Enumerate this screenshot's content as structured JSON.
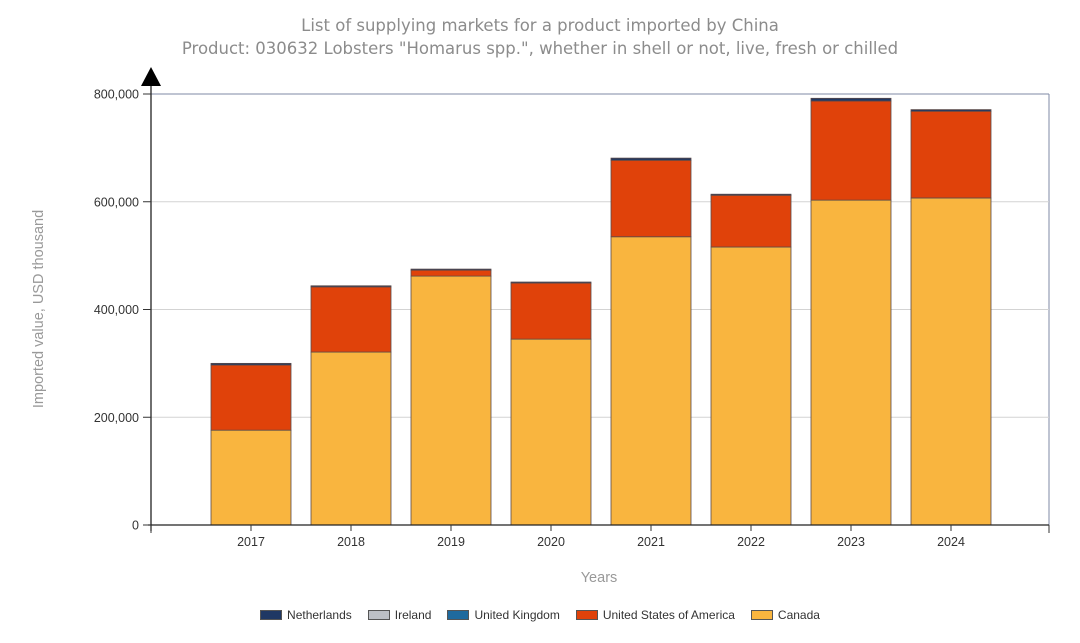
{
  "chart_data": {
    "type": "bar",
    "stacked": true,
    "title": "List of supplying markets for a product imported by China",
    "subtitle": "Product: 030632 Lobsters \"Homarus spp.\", whether in shell or not, live, fresh or chilled",
    "xlabel": "Years",
    "ylabel": "Imported value, USD thousand",
    "ylim": [
      0,
      800000
    ],
    "yticks": [
      0,
      200000,
      400000,
      600000,
      800000
    ],
    "ytick_labels": [
      "0",
      "200,000",
      "400,000",
      "600,000",
      "800,000"
    ],
    "grid": true,
    "legend_position": "bottom",
    "categories": [
      "2017",
      "2018",
      "2019",
      "2020",
      "2021",
      "2022",
      "2023",
      "2024"
    ],
    "series": [
      {
        "name": "Canada",
        "color": "#F9B53F",
        "values": [
          176000,
          321000,
          462000,
          345000,
          535000,
          516000,
          603000,
          607000
        ]
      },
      {
        "name": "United States of America",
        "color": "#E0420A",
        "values": [
          121000,
          121000,
          11000,
          104000,
          142000,
          96000,
          184000,
          161000
        ]
      },
      {
        "name": "United Kingdom",
        "color": "#1F6A9E",
        "values": [
          0,
          0,
          0,
          0,
          0,
          0,
          0,
          0
        ]
      },
      {
        "name": "Ireland",
        "color": "#BDC0C6",
        "values": [
          0,
          0,
          0,
          0,
          0,
          0,
          0,
          0
        ]
      },
      {
        "name": "Netherlands",
        "color": "#1F3864",
        "values": [
          3000,
          2000,
          2000,
          2000,
          4000,
          2000,
          5000,
          3000
        ]
      }
    ],
    "legend_order": [
      "Netherlands",
      "Ireland",
      "United Kingdom",
      "United States of America",
      "Canada"
    ]
  }
}
